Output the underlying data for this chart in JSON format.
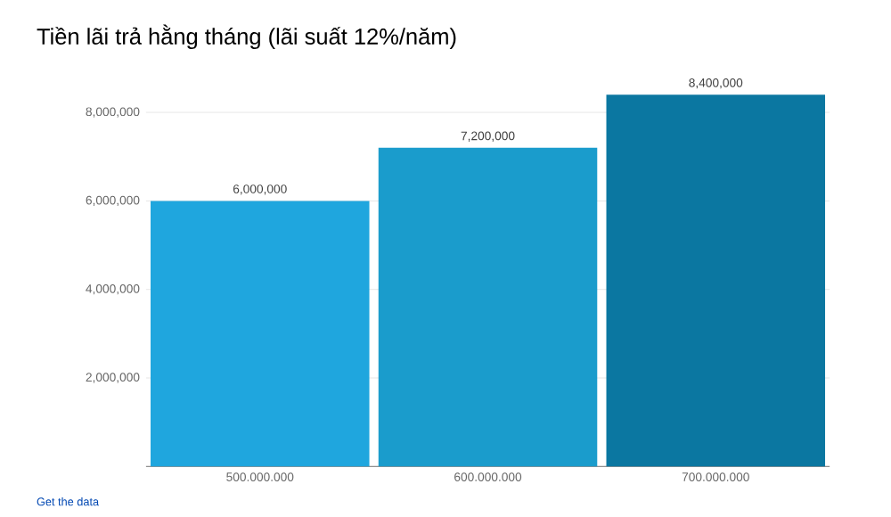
{
  "chart_data": {
    "type": "bar",
    "title": "Tiền lãi trả hằng tháng (lãi suất 12%/năm)",
    "categories": [
      "500.000.000",
      "600.000.000",
      "700.000.000"
    ],
    "values": [
      6000000,
      7200000,
      8400000
    ],
    "colors": [
      "#1fa6de",
      "#1a9ccc",
      "#0b77a1"
    ],
    "value_labels": [
      "6,000,000",
      "7,200,000",
      "8,400,000"
    ],
    "ylim": [
      0,
      8400000
    ],
    "yticks": [
      {
        "value": 2000000,
        "label": "2,000,000"
      },
      {
        "value": 4000000,
        "label": "4,000,000"
      },
      {
        "value": 6000000,
        "label": "6,000,000"
      },
      {
        "value": 8000000,
        "label": "8,000,000"
      }
    ],
    "grid": "y",
    "annotations": [
      "Get the data"
    ]
  }
}
